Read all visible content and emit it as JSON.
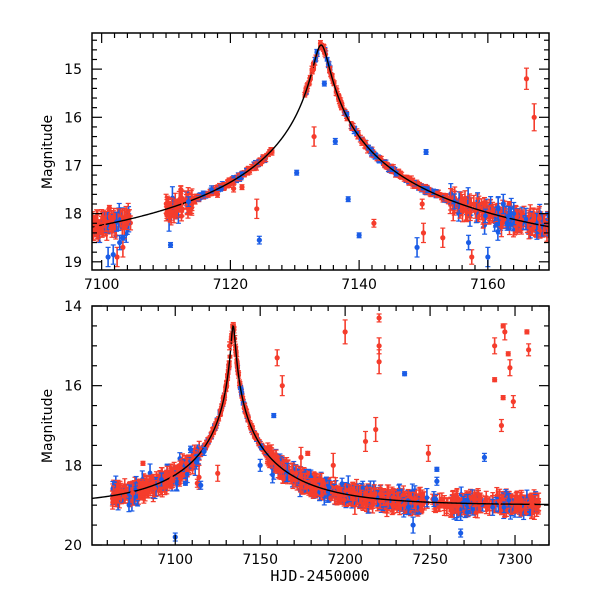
{
  "chart_data": [
    {
      "type": "scatter",
      "panel": "top",
      "title": "",
      "xlabel": "",
      "ylabel": "Magnitude",
      "xlim": [
        7098.5,
        7169.5
      ],
      "ylim": [
        19.17,
        14.25
      ],
      "y_inverted": true,
      "xticks": [
        7100,
        7120,
        7140,
        7160
      ],
      "xtick_labels": [
        "7100",
        "7120",
        "7140",
        "7160"
      ],
      "yticks": [
        15,
        16,
        17,
        18,
        19
      ],
      "ytick_labels": [
        "15",
        "16",
        "17",
        "18",
        "19"
      ],
      "grid": false,
      "model": {
        "name": "microlensing model",
        "color": "#000000",
        "t0": 7134.1,
        "peak_mag": 14.5,
        "baseline_mag": 19.0,
        "tE": 60,
        "u0": 0.0185
      },
      "series": [
        {
          "name": "red observatory",
          "color": "#f53c2c",
          "points": [
            [
              7098.7,
              18.2,
              0.05
            ],
            [
              7099.3,
              18.28,
              0.25
            ],
            [
              7100.5,
              18.15,
              0.1
            ],
            [
              7101.2,
              17.88,
              0.05
            ],
            [
              7102.4,
              18.9,
              0.2
            ],
            [
              7103.3,
              18.7,
              0.2
            ],
            [
              7112.3,
              17.5,
              0.08
            ],
            [
              7112.5,
              17.9,
              0.15
            ],
            [
              7112.4,
              18.05,
              0.1
            ],
            [
              7113.6,
              17.95,
              0.07
            ],
            [
              7118.0,
              17.6,
              0.06
            ],
            [
              7120.5,
              17.48,
              0.07
            ],
            [
              7121.8,
              17.45,
              0.05
            ],
            [
              7124.1,
              17.9,
              0.2
            ],
            [
              7132.7,
              15.02,
              0.08
            ],
            [
              7133.0,
              16.4,
              0.2
            ],
            [
              7142.3,
              18.2,
              0.08
            ],
            [
              7149.8,
              17.8,
              0.1
            ],
            [
              7150.0,
              18.4,
              0.2
            ],
            [
              7153.0,
              18.5,
              0.2
            ],
            [
              7157.5,
              18.9,
              0.15
            ],
            [
              7163.3,
              17.8,
              0.05
            ],
            [
              7166.0,
              15.2,
              0.22
            ],
            [
              7167.2,
              16.0,
              0.28
            ],
            [
              7168.0,
              18.1,
              0.25
            ]
          ]
        },
        {
          "name": "blue observatory",
          "color": "#1a5ce6",
          "points": [
            [
              7101.0,
              18.9,
              0.2
            ],
            [
              7102.8,
              18.6,
              0.15
            ],
            [
              7103.3,
              18.5,
              0.05
            ],
            [
              7101.8,
              18.85,
              0.2
            ],
            [
              7110.7,
              18.65,
              0.05
            ],
            [
              7113.5,
              17.75,
              0.1
            ],
            [
              7124.5,
              18.55,
              0.08
            ],
            [
              7130.3,
              17.15,
              0.05
            ],
            [
              7134.6,
              15.3,
              0.05
            ],
            [
              7136.3,
              16.5,
              0.06
            ],
            [
              7138.3,
              17.7,
              0.05
            ],
            [
              7140.0,
              18.45,
              0.05
            ],
            [
              7150.4,
              16.72,
              0.05
            ],
            [
              7162.4,
              17.8,
              0.2
            ],
            [
              7163.2,
              18.05,
              0.2
            ],
            [
              7149.0,
              18.7,
              0.2
            ],
            [
              7157.0,
              18.6,
              0.15
            ],
            [
              7160.0,
              18.9,
              0.2
            ]
          ]
        }
      ]
    },
    {
      "type": "scatter",
      "panel": "bottom",
      "title": "",
      "xlabel": "HJD-2450000",
      "ylabel": "Magnitude",
      "xlim": [
        7051,
        7320
      ],
      "ylim": [
        20,
        14
      ],
      "y_inverted": true,
      "xticks": [
        7100,
        7150,
        7200,
        7250,
        7300
      ],
      "xtick_labels": [
        "7100",
        "7150",
        "7200",
        "7250",
        "7300"
      ],
      "yticks": [
        14,
        16,
        18,
        20
      ],
      "ytick_labels": [
        "14",
        "16",
        "18",
        "20"
      ],
      "grid": false,
      "model": {
        "name": "microlensing model",
        "color": "#000000",
        "t0": 7134.1,
        "peak_mag": 14.5,
        "baseline_mag": 19.0,
        "tE": 60,
        "u0": 0.0185
      },
      "series": [
        {
          "name": "red observatory",
          "color": "#f53c2c",
          "points": [
            [
              7081,
              17.95,
              0.05
            ],
            [
              7086,
              18.3,
              0.05
            ],
            [
              7075,
              18.7,
              0.3
            ],
            [
              7098,
              18.35,
              0.15
            ],
            [
              7113,
              18.45,
              0.1
            ],
            [
              7114,
              18.3,
              0.3
            ],
            [
              7125,
              18.2,
              0.2
            ],
            [
              7132,
              15.0,
              0.1
            ],
            [
              7160,
              15.3,
              0.2
            ],
            [
              7163,
              16.0,
              0.25
            ],
            [
              7174,
              17.8,
              0.25
            ],
            [
              7178,
              17.7,
              0.05
            ],
            [
              7193,
              18.0,
              0.3
            ],
            [
              7200,
              14.65,
              0.3
            ],
            [
              7212,
              17.4,
              0.25
            ],
            [
              7218,
              17.1,
              0.3
            ],
            [
              7220,
              14.3,
              0.1
            ],
            [
              7220,
              15.0,
              0.2
            ],
            [
              7220,
              15.4,
              0.3
            ],
            [
              7249,
              17.7,
              0.2
            ],
            [
              7288,
              15.0,
              0.2
            ],
            [
              7288,
              15.85,
              0.05
            ],
            [
              7293,
              16.3,
              0.05
            ],
            [
              7292,
              17.0,
              0.15
            ],
            [
              7293,
              14.5,
              0.05
            ],
            [
              7294,
              14.65,
              0.2
            ],
            [
              7296,
              15.2,
              0.05
            ],
            [
              7297,
              15.55,
              0.2
            ],
            [
              7299,
              16.4,
              0.15
            ],
            [
              7307,
              14.65,
              0.05
            ],
            [
              7308,
              15.1,
              0.15
            ],
            [
              7291,
              18.9,
              0.3
            ],
            [
              7310,
              19.0,
              0.3
            ]
          ]
        },
        {
          "name": "blue observatory",
          "color": "#1a5ce6",
          "points": [
            [
              7109,
              17.6,
              0.08
            ],
            [
              7117,
              17.65,
              0.1
            ],
            [
              7106,
              18.45,
              0.05
            ],
            [
              7115,
              18.5,
              0.1
            ],
            [
              7100,
              19.8,
              0.1
            ],
            [
              7150,
              18.0,
              0.15
            ],
            [
              7158,
              16.75,
              0.05
            ],
            [
              7235,
              15.7,
              0.05
            ],
            [
              7282,
              17.8,
              0.1
            ],
            [
              7254,
              18.4,
              0.1
            ],
            [
              7254,
              18.1,
              0.05
            ],
            [
              7268,
              19.7,
              0.1
            ],
            [
              7240,
              19.5,
              0.2
            ]
          ]
        }
      ]
    }
  ]
}
